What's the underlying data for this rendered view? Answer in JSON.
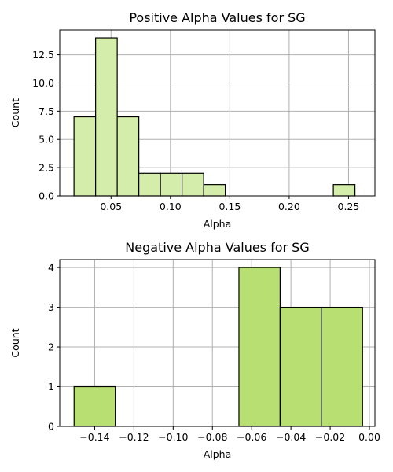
{
  "chart_data": [
    {
      "type": "bar",
      "title": "Positive Alpha Values for SG",
      "xlabel": "Alpha",
      "ylabel": "Count",
      "xlim": [
        0.0068,
        0.2722
      ],
      "ylim": [
        0,
        14.7
      ],
      "xticks": [
        0.05,
        0.1,
        0.15,
        0.2,
        0.25
      ],
      "xtick_labels": [
        "0.05",
        "0.10",
        "0.15",
        "0.20",
        "0.25"
      ],
      "yticks": [
        0,
        2.5,
        5.0,
        7.5,
        10.0,
        12.5
      ],
      "ytick_labels": [
        "0.0",
        "2.5",
        "5.0",
        "7.5",
        "10.0",
        "12.5"
      ],
      "bin_edges": [
        0.0188,
        0.037,
        0.0552,
        0.0734,
        0.0916,
        0.1098,
        0.128,
        0.1462,
        0.1644,
        0.1826,
        0.2008,
        0.219,
        0.2372,
        0.2554
      ],
      "values": [
        7,
        14,
        7,
        2,
        2,
        2,
        1,
        0,
        0,
        0,
        0,
        0,
        1
      ],
      "bar_color": "#d5edaa",
      "grid": true
    },
    {
      "type": "bar",
      "title": "Negative Alpha Values for SG",
      "xlabel": "Alpha",
      "ylabel": "Count",
      "xlim": [
        -0.1578,
        0.0028
      ],
      "ylim": [
        0,
        4.2
      ],
      "xticks": [
        -0.14,
        -0.12,
        -0.1,
        -0.08,
        -0.06,
        -0.04,
        -0.02,
        0.0
      ],
      "xtick_labels": [
        "−0.14",
        "−0.12",
        "−0.10",
        "−0.08",
        "−0.06",
        "−0.04",
        "−0.02",
        "0.00"
      ],
      "yticks": [
        0,
        1,
        2,
        3,
        4
      ],
      "ytick_labels": [
        "0",
        "1",
        "2",
        "3",
        "4"
      ],
      "bin_edges": [
        -0.1505,
        -0.1295,
        -0.1085,
        -0.0875,
        -0.0665,
        -0.0455,
        -0.0245,
        -0.0035
      ],
      "values": [
        1,
        0,
        0,
        0,
        4,
        3,
        3
      ],
      "bar_color": "#b8df72",
      "grid": true
    }
  ]
}
